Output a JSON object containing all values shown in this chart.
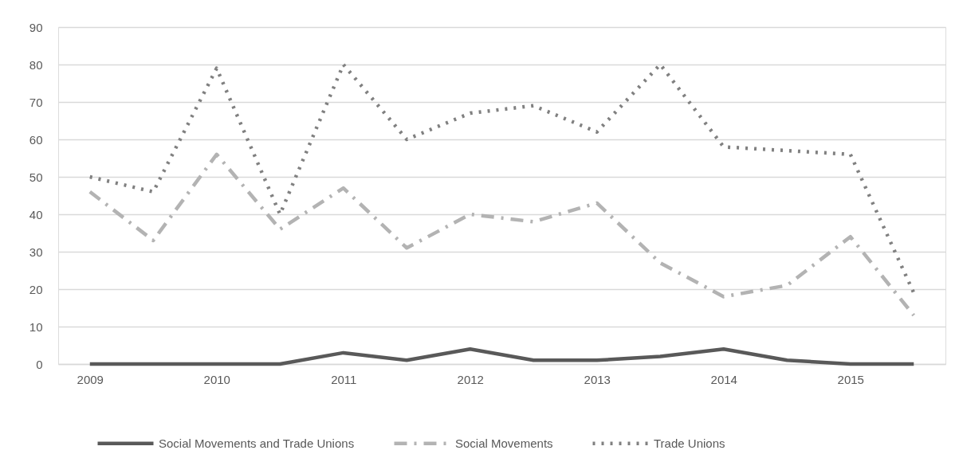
{
  "chart_data": {
    "type": "line",
    "categories": [
      "2009",
      null,
      "2010",
      null,
      "2011",
      null,
      "2012",
      null,
      "2013",
      null,
      "2014",
      null,
      "2015",
      null
    ],
    "series": [
      {
        "name": "Social Movements and Trade Unions",
        "color": "#595959",
        "line_style": "solid",
        "values": [
          0,
          0,
          0,
          0,
          3,
          1,
          4,
          1,
          1,
          2,
          4,
          1,
          0,
          0
        ]
      },
      {
        "name": "Social Movements",
        "color": "#b3b3b3",
        "line_style": "dashed",
        "values": [
          46,
          33,
          56,
          36,
          47,
          31,
          40,
          38,
          43,
          27,
          18,
          21,
          34,
          13
        ]
      },
      {
        "name": "Trade Unions",
        "color": "#808080",
        "line_style": "dotted",
        "values": [
          50,
          46,
          79,
          40,
          80,
          60,
          67,
          69,
          62,
          80,
          58,
          57,
          56,
          19
        ]
      }
    ],
    "ylim": [
      0,
      90
    ],
    "yticks": [
      0,
      10,
      20,
      30,
      40,
      50,
      60,
      70,
      80,
      90
    ],
    "grid": "y",
    "legend": "bottom"
  }
}
